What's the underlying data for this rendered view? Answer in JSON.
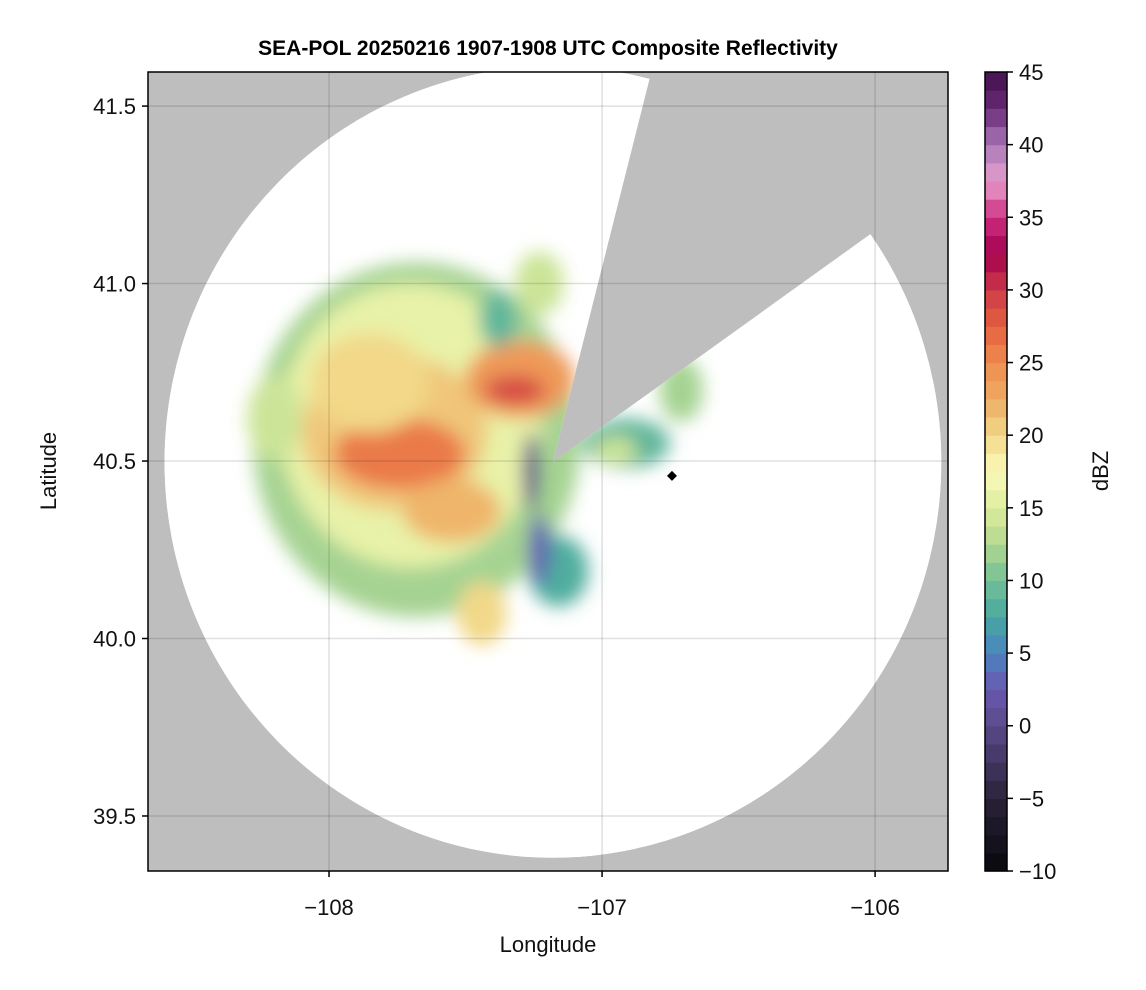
{
  "chart_data": {
    "type": "heatmap",
    "title": "SEA-POL 20250216 1907-1908 UTC Composite Reflectivity",
    "xlabel": "Longitude",
    "ylabel": "Latitude",
    "xlim": [
      -108.663,
      -105.733
    ],
    "ylim": [
      39.345,
      41.596
    ],
    "xticks": [
      -108,
      -107,
      -106
    ],
    "xtick_labels": [
      "−108",
      "−107",
      "−106"
    ],
    "yticks": [
      39.5,
      40.0,
      40.5,
      41.0,
      41.5
    ],
    "ytick_labels": [
      "39.5",
      "40.0",
      "40.5",
      "41.0",
      "41.5"
    ],
    "grid": true,
    "background_color": "#bebebe",
    "coverage_color": "#ffffff",
    "radar": {
      "center_lon": -107.18,
      "center_lat": 40.497,
      "range_lon_deg": 1.423,
      "range_lat_deg": 1.115,
      "blocked_sector_azimuth_deg": [
        14,
        54
      ]
    },
    "marker": {
      "lon": -106.744,
      "lat": 40.458,
      "symbol": "diamond",
      "color": "#000000"
    },
    "colorbar": {
      "label": "dBZ",
      "range": [
        -10,
        45
      ],
      "step": 1.25,
      "ticks": [
        -10,
        -5,
        0,
        5,
        10,
        15,
        20,
        25,
        30,
        35,
        40,
        45
      ],
      "tick_labels": [
        "−10",
        "−5",
        "0",
        "5",
        "10",
        "15",
        "20",
        "25",
        "30",
        "35",
        "40",
        "45"
      ],
      "stops": [
        [
          -10,
          "#08080c"
        ],
        [
          -5,
          "#2a2238"
        ],
        [
          0,
          "#5a4a8a"
        ],
        [
          2.5,
          "#6a58b0"
        ],
        [
          5,
          "#4a84c0"
        ],
        [
          7.5,
          "#48a8a0"
        ],
        [
          10,
          "#72c098"
        ],
        [
          12.5,
          "#b2d890"
        ],
        [
          15,
          "#dcec9c"
        ],
        [
          17.5,
          "#fbfbba"
        ],
        [
          20,
          "#f2d888"
        ],
        [
          22.5,
          "#eeac64"
        ],
        [
          25,
          "#ee8c50"
        ],
        [
          27.5,
          "#e4603e"
        ],
        [
          30,
          "#cc3a48"
        ],
        [
          32.5,
          "#a2004e"
        ],
        [
          35,
          "#cc2e80"
        ],
        [
          37.5,
          "#e6a0cc"
        ],
        [
          40,
          "#a878b8"
        ],
        [
          42.5,
          "#6a2a78"
        ],
        [
          45,
          "#40104a"
        ]
      ]
    },
    "echo_cells": [
      {
        "lon": -107.68,
        "lat": 40.56,
        "rlon": 0.6,
        "rlat": 0.5,
        "dbz": 12
      },
      {
        "lon": -107.7,
        "lat": 40.6,
        "rlon": 0.48,
        "rlat": 0.4,
        "dbz": 16
      },
      {
        "lon": -107.76,
        "lat": 40.58,
        "rlon": 0.34,
        "rlat": 0.22,
        "dbz": 21
      },
      {
        "lon": -107.74,
        "lat": 40.52,
        "rlon": 0.24,
        "rlat": 0.1,
        "dbz": 26
      },
      {
        "lon": -107.85,
        "lat": 40.72,
        "rlon": 0.22,
        "rlat": 0.14,
        "dbz": 20
      },
      {
        "lon": -107.3,
        "lat": 40.73,
        "rlon": 0.2,
        "rlat": 0.11,
        "dbz": 24
      },
      {
        "lon": -107.32,
        "lat": 40.7,
        "rlon": 0.11,
        "rlat": 0.04,
        "dbz": 29
      },
      {
        "lon": -107.55,
        "lat": 40.36,
        "rlon": 0.18,
        "rlat": 0.09,
        "dbz": 22
      },
      {
        "lon": -107.44,
        "lat": 40.07,
        "rlon": 0.09,
        "rlat": 0.09,
        "dbz": 20
      },
      {
        "lon": -107.26,
        "lat": 40.47,
        "rlon": 0.03,
        "rlat": 0.11,
        "dbz": 0
      },
      {
        "lon": -107.16,
        "lat": 40.19,
        "rlon": 0.11,
        "rlat": 0.1,
        "dbz": 8
      },
      {
        "lon": -107.23,
        "lat": 40.25,
        "rlon": 0.04,
        "rlat": 0.1,
        "dbz": 3
      },
      {
        "lon": -107.23,
        "lat": 41.0,
        "rlon": 0.09,
        "rlat": 0.09,
        "dbz": 14
      },
      {
        "lon": -107.38,
        "lat": 40.9,
        "rlon": 0.07,
        "rlat": 0.08,
        "dbz": 9
      },
      {
        "lon": -106.91,
        "lat": 40.55,
        "rlon": 0.16,
        "rlat": 0.07,
        "dbz": 9
      },
      {
        "lon": -106.95,
        "lat": 40.53,
        "rlon": 0.08,
        "rlat": 0.04,
        "dbz": 14
      },
      {
        "lon": -106.71,
        "lat": 40.7,
        "rlon": 0.08,
        "rlat": 0.09,
        "dbz": 12
      },
      {
        "lon": -108.2,
        "lat": 40.62,
        "rlon": 0.1,
        "rlat": 0.12,
        "dbz": 14
      }
    ]
  }
}
